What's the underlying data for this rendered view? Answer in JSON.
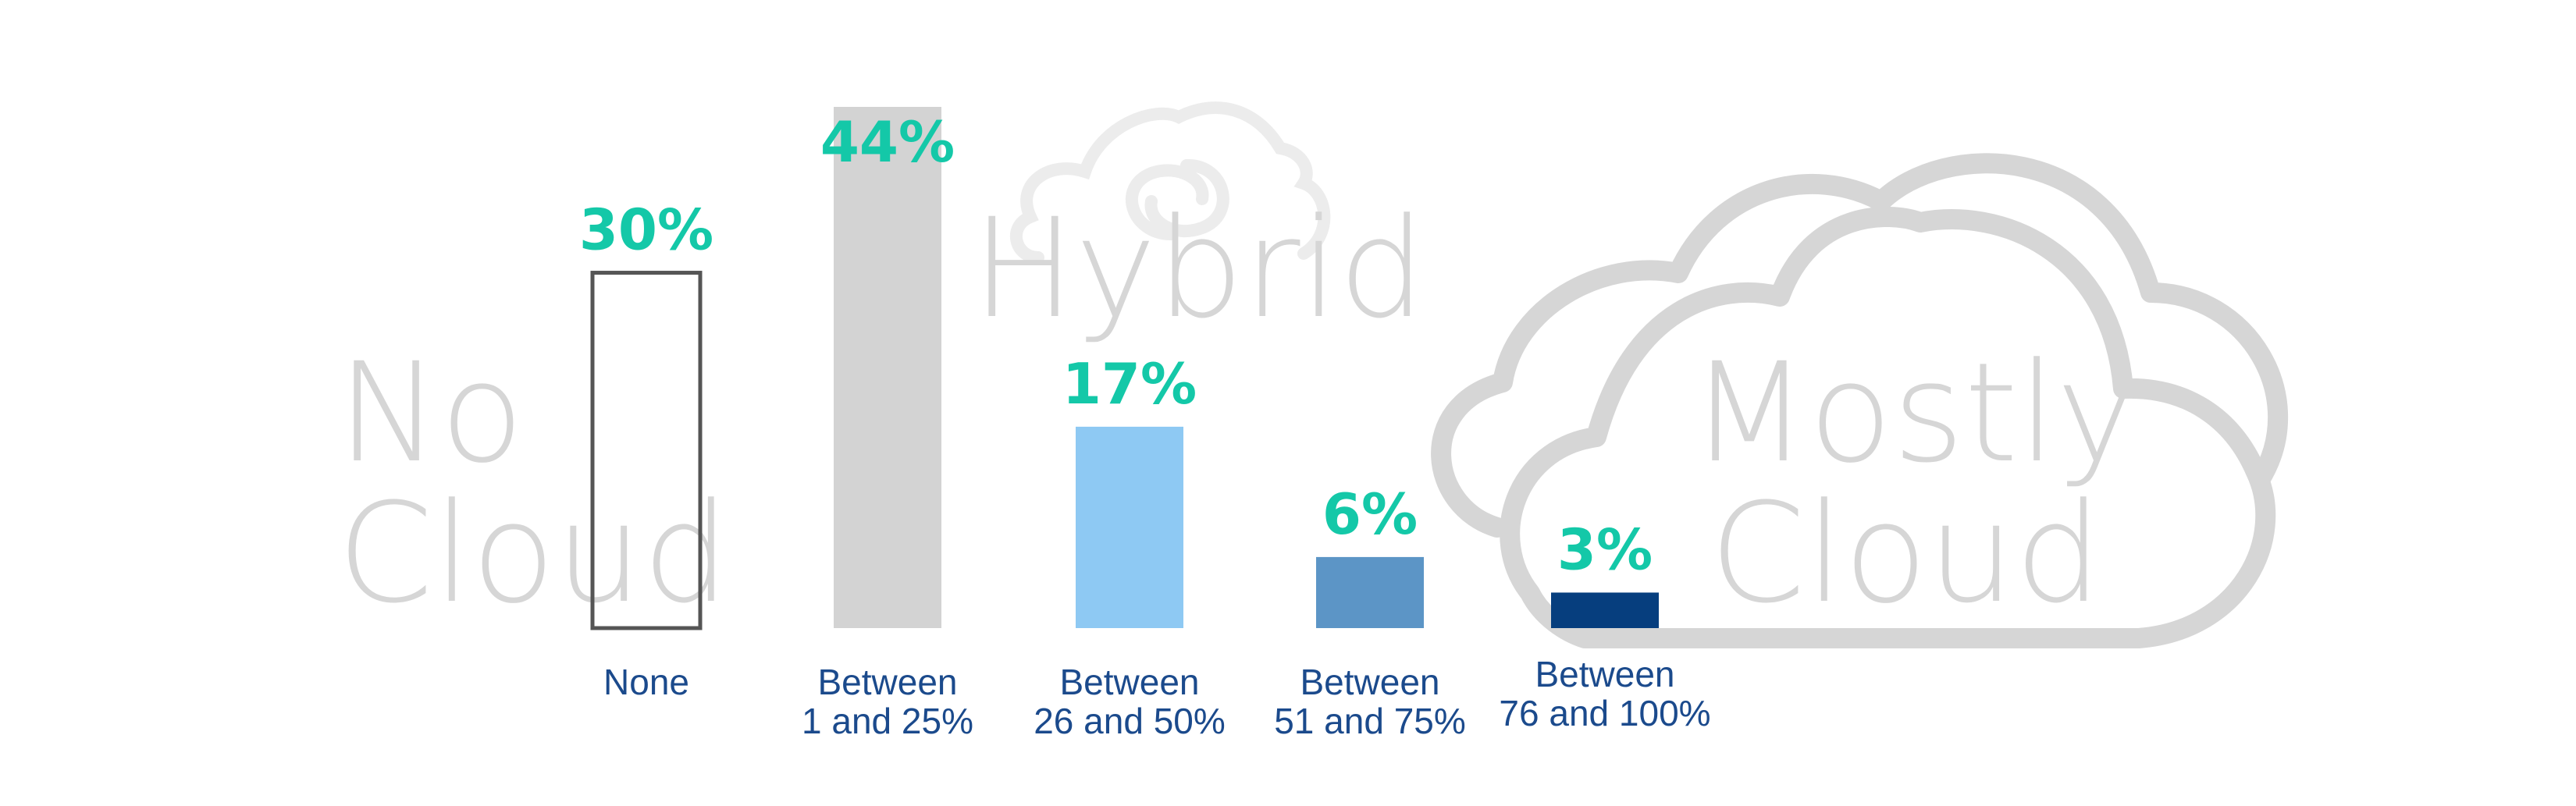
{
  "colors": {
    "label": "#14c8a8",
    "category": "#1b4a8c",
    "cloud": "#d6d6d6",
    "background": "#ffffff"
  },
  "zones": {
    "no_cloud": [
      "No",
      "Cloud"
    ],
    "hybrid": "Hybrid",
    "mostly_cloud": [
      "Mostly",
      "Cloud"
    ]
  },
  "icons": [
    "cloud-icon",
    "hybrid-cloud-icon"
  ],
  "chart_data": {
    "type": "bar",
    "categories": [
      [
        "None"
      ],
      [
        "Between",
        "1 and 25%"
      ],
      [
        "Between",
        "26 and 50%"
      ],
      [
        "Between",
        "51 and 75%"
      ],
      [
        "Between",
        "76 and 100%"
      ]
    ],
    "values": [
      30,
      44,
      17,
      6,
      3
    ],
    "value_labels": [
      "30%",
      "44%",
      "17%",
      "6%",
      "3%"
    ],
    "bar_colors": [
      "none",
      "#d3d3d3",
      "#8ec9f3",
      "#5c95c6",
      "#063e7e"
    ],
    "bar_stroke": [
      "#555555",
      "none",
      "none",
      "none",
      "none"
    ],
    "unit": "%",
    "ylim": [
      0,
      44
    ],
    "grid": false,
    "legend": false
  }
}
